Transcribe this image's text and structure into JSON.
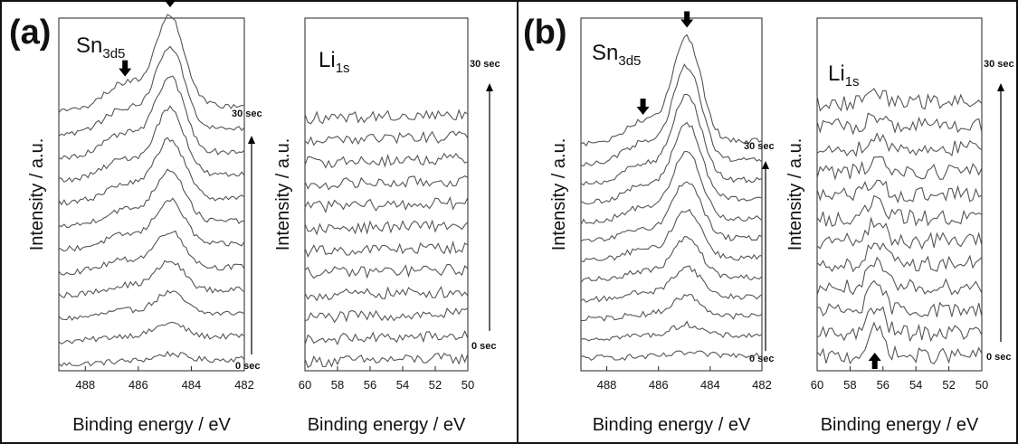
{
  "panels": [
    {
      "letter": "(a)"
    },
    {
      "letter": "(b)"
    }
  ],
  "chart_data": [
    {
      "panel": "(a)",
      "type": "line",
      "title": "Sn",
      "title_subscript": "3d5",
      "xlabel": "Binding energy / eV",
      "ylabel": "Intensity / a.u.",
      "xlim": [
        489,
        482
      ],
      "xticks": [
        488,
        486,
        484,
        482
      ],
      "time_range": {
        "start_label": "0 sec",
        "end_label": "30 sec",
        "direction": "upward"
      },
      "series_count": 12,
      "peaks": [
        {
          "center": 484.8,
          "amplitude_first": 0.05,
          "amplitude_last": 0.62,
          "width": 0.55
        },
        {
          "center": 486.5,
          "amplitude_first": 0.01,
          "amplitude_last": 0.18,
          "width": 0.75
        }
      ],
      "baseline_slope": 0.1,
      "noise": 0.02,
      "arrows": [
        {
          "x": 484.8,
          "kind": "down"
        },
        {
          "x": 486.5,
          "kind": "down"
        }
      ],
      "grid": false
    },
    {
      "panel": "(a)",
      "type": "line",
      "title": "Li",
      "title_subscript": "1s",
      "xlabel": "Binding energy / eV",
      "ylabel": "Intensity / a.u.",
      "xlim": [
        60,
        50
      ],
      "xticks": [
        60,
        58,
        56,
        54,
        52,
        50
      ],
      "time_range": {
        "start_label": "0 sec",
        "end_label": "30 sec",
        "direction": "upward"
      },
      "series_count": 12,
      "peaks": [],
      "baseline_slope": 0.25,
      "noise": 0.16,
      "arrows": [],
      "grid": false
    },
    {
      "panel": "(b)",
      "type": "line",
      "title": "Sn",
      "title_subscript": "3d5",
      "xlabel": "Binding energy / eV",
      "ylabel": "Intensity / a.u.",
      "xlim": [
        489,
        482
      ],
      "xticks": [
        488,
        486,
        484,
        482
      ],
      "time_range": {
        "start_label": "0 sec",
        "end_label": "30 sec",
        "direction": "upward"
      },
      "series_count": 12,
      "peaks": [
        {
          "center": 484.9,
          "amplitude_first": 0.02,
          "amplitude_last": 0.72,
          "width": 0.55
        },
        {
          "center": 486.6,
          "amplitude_first": 0.0,
          "amplitude_last": 0.15,
          "width": 0.7
        }
      ],
      "baseline_slope": 0.06,
      "noise": 0.02,
      "arrows": [
        {
          "x": 484.9,
          "kind": "down"
        },
        {
          "x": 486.6,
          "kind": "down"
        }
      ],
      "grid": false
    },
    {
      "panel": "(b)",
      "type": "line",
      "title": "Li",
      "title_subscript": "1s",
      "xlabel": "Binding energy / eV",
      "ylabel": "Intensity / a.u.",
      "xlim": [
        60,
        50
      ],
      "xticks": [
        60,
        58,
        56,
        54,
        52,
        50
      ],
      "time_range": {
        "start_label": "0 sec",
        "end_label": "30 sec",
        "direction": "upward"
      },
      "series_count": 12,
      "peaks": [
        {
          "center": 56.4,
          "amplitude_first": 0.15,
          "amplitude_last": 0.05,
          "width": 0.5
        }
      ],
      "baseline_slope": 0.12,
      "noise": 0.22,
      "arrows": [
        {
          "x": 56.5,
          "kind": "up"
        }
      ],
      "grid": false
    }
  ]
}
